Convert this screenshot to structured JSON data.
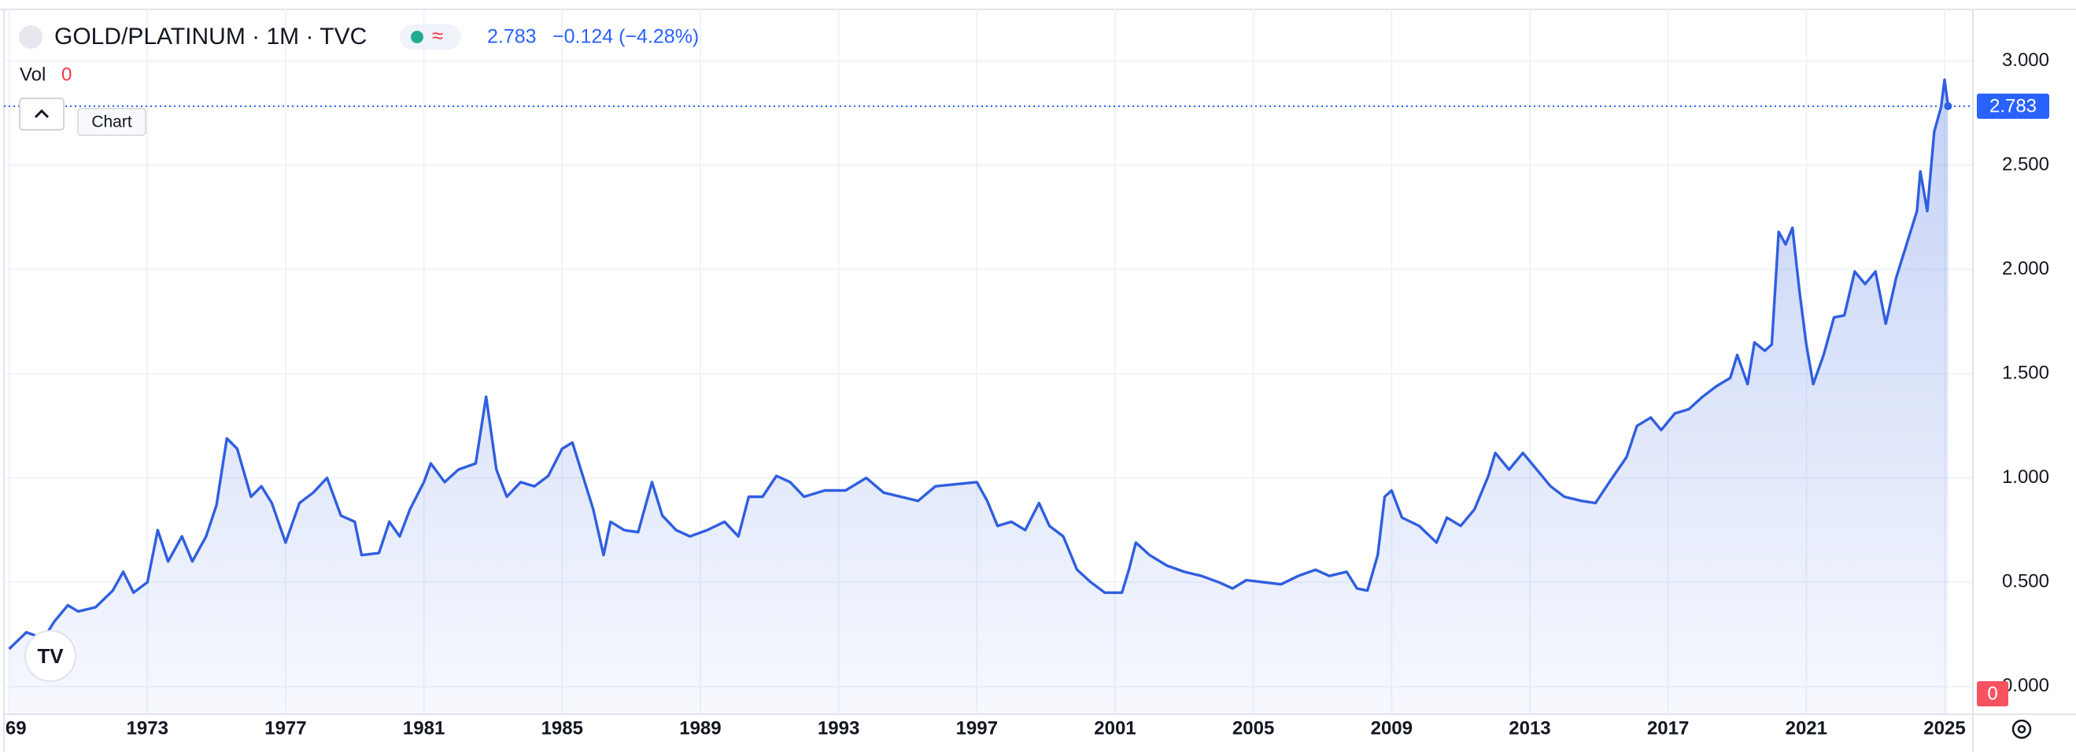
{
  "chart_data": {
    "type": "line",
    "title": "GOLD/PLATINUM · 1M · TVC",
    "last_price": 2.783,
    "change": "−0.124 (−4.28%)",
    "volume_label": "Vol",
    "volume_value": 0,
    "tooltip": "Chart",
    "color": "#2f5ee0",
    "grid": true,
    "xlim": [
      1968.85,
      2025.82
    ],
    "ylim": [
      -0.133,
      3.228
    ],
    "xticks": [
      {
        "value": 1969,
        "label": "69"
      },
      1973,
      1977,
      1981,
      1985,
      1989,
      1993,
      1997,
      2001,
      2005,
      2009,
      2013,
      2017,
      2021,
      2025
    ],
    "yticks": [
      {
        "value": 0,
        "label": "0.000"
      },
      {
        "value": 0.5,
        "label": "0.500"
      },
      {
        "value": 1,
        "label": "1.000"
      },
      {
        "value": 1.5,
        "label": "1.500"
      },
      {
        "value": 2,
        "label": "2.000"
      },
      {
        "value": 2.5,
        "label": "2.500"
      },
      {
        "value": 3,
        "label": "3.000"
      }
    ],
    "x": [
      1969.0,
      1969.5,
      1970.0,
      1970.3,
      1970.7,
      1971.0,
      1971.5,
      1972.0,
      1972.3,
      1972.6,
      1973.0,
      1973.3,
      1973.6,
      1974.0,
      1974.3,
      1974.7,
      1975.0,
      1975.3,
      1975.6,
      1976.0,
      1976.3,
      1976.6,
      1977.0,
      1977.4,
      1977.8,
      1978.2,
      1978.6,
      1979.0,
      1979.2,
      1979.7,
      1980.0,
      1980.3,
      1980.6,
      1981.0,
      1981.2,
      1981.6,
      1982.0,
      1982.5,
      1982.8,
      1983.1,
      1983.4,
      1983.8,
      1984.2,
      1984.6,
      1985.0,
      1985.3,
      1985.6,
      1985.9,
      1986.2,
      1986.4,
      1986.8,
      1987.2,
      1987.6,
      1987.9,
      1988.3,
      1988.7,
      1989.2,
      1989.7,
      1990.1,
      1990.4,
      1990.8,
      1991.2,
      1991.6,
      1992.0,
      1992.6,
      1993.2,
      1993.8,
      1994.3,
      1994.8,
      1995.3,
      1995.8,
      1996.4,
      1997.0,
      1997.3,
      1997.6,
      1998.0,
      1998.4,
      1998.8,
      1999.1,
      1999.5,
      1999.9,
      2000.3,
      2000.7,
      2001.2,
      2001.4,
      2001.6,
      2002.0,
      2002.5,
      2003.0,
      2003.5,
      2004.0,
      2004.4,
      2004.8,
      2005.3,
      2005.8,
      2006.3,
      2006.8,
      2007.2,
      2007.7,
      2008.0,
      2008.3,
      2008.6,
      2008.8,
      2009.0,
      2009.3,
      2009.8,
      2010.3,
      2010.6,
      2011.0,
      2011.4,
      2011.8,
      2012.0,
      2012.4,
      2012.8,
      2013.2,
      2013.6,
      2014.0,
      2014.5,
      2014.9,
      2015.3,
      2015.8,
      2016.1,
      2016.5,
      2016.8,
      2017.2,
      2017.6,
      2018.0,
      2018.4,
      2018.8,
      2019.0,
      2019.3,
      2019.5,
      2019.8,
      2020.0,
      2020.2,
      2020.4,
      2020.6,
      2020.8,
      2021.0,
      2021.2,
      2021.5,
      2021.8,
      2022.1,
      2022.4,
      2022.7,
      2023.0,
      2023.3,
      2023.6,
      2023.9,
      2024.2,
      2024.3,
      2024.5,
      2024.7,
      2024.9,
      2025.0,
      2025.1
    ],
    "values": [
      0.18,
      0.26,
      0.23,
      0.31,
      0.39,
      0.36,
      0.38,
      0.46,
      0.55,
      0.45,
      0.5,
      0.75,
      0.6,
      0.72,
      0.6,
      0.72,
      0.87,
      1.19,
      1.14,
      0.91,
      0.96,
      0.88,
      0.69,
      0.88,
      0.93,
      1.0,
      0.82,
      0.79,
      0.63,
      0.64,
      0.79,
      0.72,
      0.85,
      0.98,
      1.07,
      0.98,
      1.04,
      1.07,
      1.39,
      1.04,
      0.91,
      0.98,
      0.96,
      1.01,
      1.14,
      1.17,
      1.01,
      0.85,
      0.63,
      0.79,
      0.75,
      0.74,
      0.98,
      0.82,
      0.75,
      0.72,
      0.75,
      0.79,
      0.72,
      0.91,
      0.91,
      1.01,
      0.98,
      0.91,
      0.94,
      0.94,
      1.0,
      0.93,
      0.91,
      0.89,
      0.96,
      0.97,
      0.98,
      0.89,
      0.77,
      0.79,
      0.75,
      0.88,
      0.77,
      0.72,
      0.56,
      0.5,
      0.45,
      0.45,
      0.56,
      0.69,
      0.63,
      0.58,
      0.55,
      0.53,
      0.5,
      0.47,
      0.51,
      0.5,
      0.49,
      0.53,
      0.56,
      0.53,
      0.55,
      0.47,
      0.46,
      0.63,
      0.91,
      0.94,
      0.81,
      0.77,
      0.69,
      0.81,
      0.77,
      0.85,
      1.01,
      1.12,
      1.04,
      1.12,
      1.04,
      0.96,
      0.91,
      0.89,
      0.88,
      0.98,
      1.1,
      1.25,
      1.29,
      1.23,
      1.31,
      1.33,
      1.39,
      1.44,
      1.48,
      1.59,
      1.45,
      1.65,
      1.61,
      1.64,
      2.18,
      2.12,
      2.2,
      1.9,
      1.64,
      1.45,
      1.59,
      1.77,
      1.78,
      1.99,
      1.93,
      1.99,
      1.74,
      1.96,
      2.12,
      2.28,
      2.47,
      2.28,
      2.66,
      2.78,
      2.91,
      2.783
    ]
  }
}
